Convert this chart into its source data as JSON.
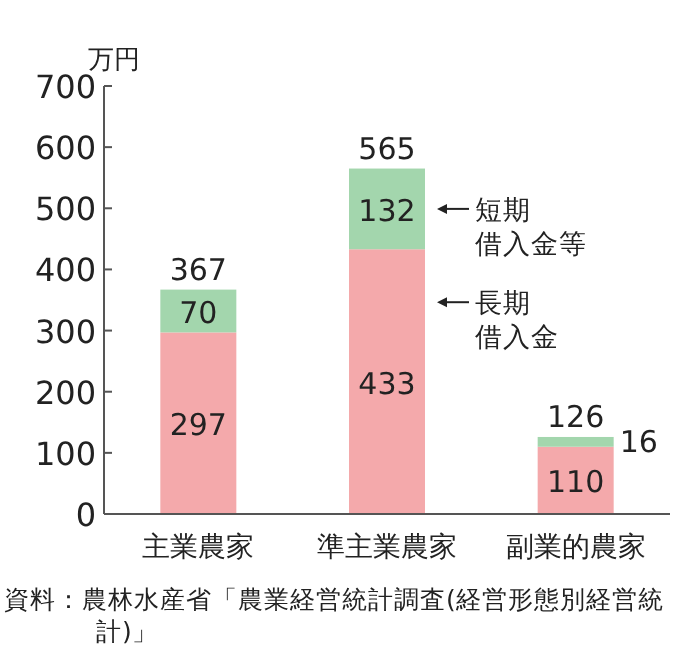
{
  "chart_data": {
    "type": "bar",
    "stacked": true,
    "ylabel": "万円",
    "categories": [
      "主業農家",
      "準主業農家",
      "副業的農家"
    ],
    "series": [
      {
        "name": "長期借入金",
        "color": "#f4a9ab",
        "values": [
          297,
          433,
          110
        ]
      },
      {
        "name": "短期借入金等",
        "color": "#a3d6ad",
        "values": [
          70,
          132,
          16
        ]
      }
    ],
    "data_labels": true,
    "totals": [
      "367",
      "565",
      "126"
    ],
    "ylim": [
      0,
      700
    ],
    "yticks": [
      0,
      100,
      200,
      300,
      400,
      500,
      600,
      700
    ],
    "grid": false,
    "annotations": [
      "資料：農林水産省「農業経営統計調査(経営形態別経営統計)」"
    ]
  }
}
